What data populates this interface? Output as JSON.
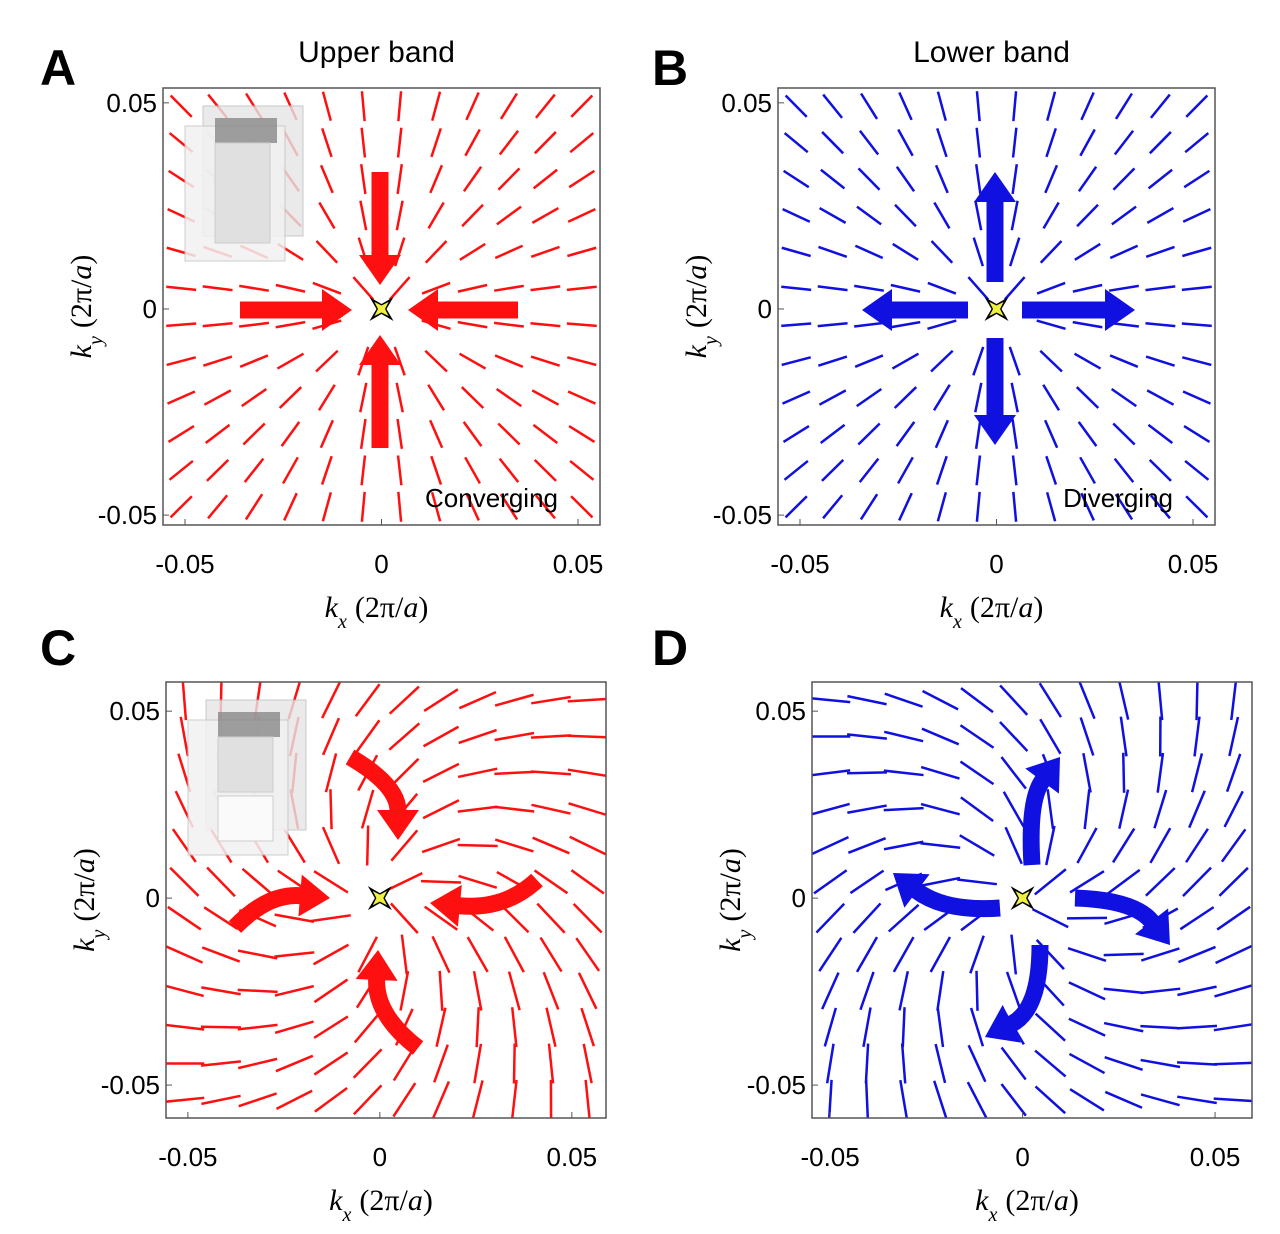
{
  "chart_data": [
    {
      "type": "quiver",
      "panel": "A",
      "title": "Upper band",
      "annotation": "Converging",
      "color": "#ff1010",
      "twist": 0,
      "arrows": "in",
      "inset": true,
      "xlabel": [
        "k",
        "x",
        "(2π/",
        "a",
        ")"
      ],
      "ylabel": [
        "k",
        "y",
        "(2π/",
        "a",
        ")"
      ],
      "xlim": [
        -0.0556,
        0.0556
      ],
      "ylim": [
        -0.0524,
        0.0536
      ],
      "xticks": [
        -0.05,
        0,
        0.05
      ],
      "yticks": [
        -0.05,
        0,
        0.05
      ]
    },
    {
      "type": "quiver",
      "panel": "B",
      "title": "Lower band",
      "annotation": "Diverging",
      "color": "#1010e0",
      "twist": 0,
      "arrows": "out",
      "inset": false,
      "xlabel": [
        "k",
        "x",
        "(2π/",
        "a",
        ")"
      ],
      "ylabel": [
        "k",
        "y",
        "(2π/",
        "a",
        ")"
      ],
      "xlim": [
        -0.0556,
        0.0556
      ],
      "ylim": [
        -0.0524,
        0.0536
      ],
      "xticks": [
        -0.05,
        0,
        0.05
      ],
      "yticks": [
        -0.05,
        0,
        0.05
      ]
    },
    {
      "type": "quiver",
      "panel": "C",
      "color": "#ff1010",
      "twist": 0.7,
      "arrows": "curl-in",
      "inset": true,
      "xlabel": [
        "k",
        "x",
        "(2π/",
        "a",
        ")"
      ],
      "ylabel": [
        "k",
        "y",
        "(2π/",
        "a",
        ")"
      ],
      "xlim": [
        -0.0557,
        0.0589
      ],
      "ylim": [
        -0.0588,
        0.0578
      ],
      "xticks": [
        -0.05,
        0,
        0.05
      ],
      "yticks": [
        -0.05,
        0,
        0.05
      ]
    },
    {
      "type": "quiver",
      "panel": "D",
      "color": "#1010e0",
      "twist": -0.7,
      "arrows": "curl-out",
      "inset": false,
      "xlabel": [
        "k",
        "x",
        "(2π/",
        "a",
        ")"
      ],
      "ylabel": [
        "k",
        "y",
        "(2π/",
        "a",
        ")"
      ],
      "xlim": [
        -0.0547,
        0.0596
      ],
      "ylim": [
        -0.0588,
        0.0578
      ],
      "xticks": [
        -0.05,
        0,
        0.05
      ],
      "yticks": [
        -0.05,
        0,
        0.05
      ]
    }
  ]
}
